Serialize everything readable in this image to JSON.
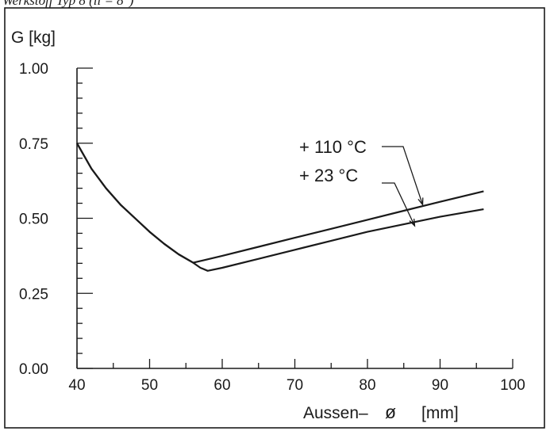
{
  "caption": "Werkstoff Typ 8 (ll = 8\")",
  "chart_data": {
    "type": "line",
    "ylabel": "G [kg]",
    "xlabel_left": "Aussen–",
    "xlabel_symbol": "ø",
    "xlabel_unit": "[mm]",
    "xlim": [
      40,
      100
    ],
    "ylim": [
      0,
      1
    ],
    "x_ticks": [
      40,
      50,
      60,
      70,
      80,
      90,
      100
    ],
    "x_tick_labels": [
      "40",
      "50",
      "60",
      "70",
      "80",
      "90",
      "100"
    ],
    "y_ticks": [
      0,
      0.25,
      0.5,
      0.75,
      1.0
    ],
    "y_tick_labels": [
      "0.00",
      "0.25",
      "0.50",
      "0.75",
      "1.00"
    ],
    "grid": false,
    "series": [
      {
        "name": "+ 110 °C",
        "x": [
          40,
          42,
          44,
          46,
          48,
          50,
          52,
          54,
          56,
          60,
          65,
          70,
          75,
          80,
          85,
          90,
          96
        ],
        "y": [
          0.75,
          0.665,
          0.6,
          0.545,
          0.5,
          0.455,
          0.415,
          0.38,
          0.352,
          0.375,
          0.405,
          0.435,
          0.465,
          0.495,
          0.525,
          0.555,
          0.59
        ]
      },
      {
        "name": "+ 23 °C",
        "x": [
          40,
          42,
          44,
          46,
          48,
          50,
          52,
          54,
          56,
          57,
          58,
          60,
          65,
          70,
          75,
          80,
          85,
          90,
          96
        ],
        "y": [
          0.75,
          0.665,
          0.6,
          0.545,
          0.5,
          0.455,
          0.415,
          0.38,
          0.352,
          0.335,
          0.325,
          0.335,
          0.365,
          0.395,
          0.425,
          0.455,
          0.48,
          0.505,
          0.53
        ]
      }
    ],
    "annotations": [
      {
        "series": 0,
        "text": "+ 110 °C",
        "at": [
          87.6,
          0.545
        ]
      },
      {
        "series": 1,
        "text": "+  23 °C",
        "at": [
          86.5,
          0.475
        ]
      }
    ]
  }
}
